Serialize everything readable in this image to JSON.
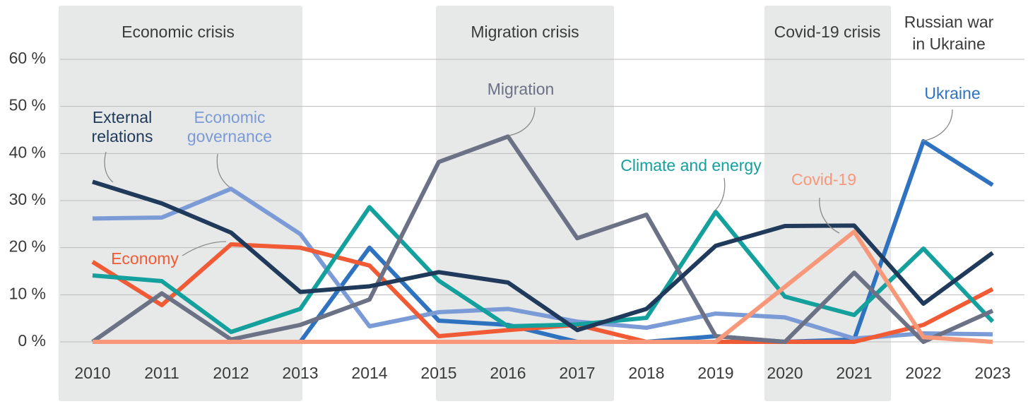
{
  "chart_data": {
    "type": "line",
    "categories": [
      "2010",
      "2011",
      "2012",
      "2013",
      "2014",
      "2015",
      "2016",
      "2017",
      "2018",
      "2019",
      "2020",
      "2021",
      "2022",
      "2023"
    ],
    "periods": [
      "Economic crisis",
      "Migration crisis",
      "Covid-19 crisis",
      "Russian war in Ukraine"
    ],
    "ylim": [
      0,
      60
    ],
    "yticks": [
      {
        "value": 0,
        "label": "0 %"
      },
      {
        "value": 10,
        "label": "10 %"
      },
      {
        "value": 20,
        "label": "20 %"
      },
      {
        "value": 30,
        "label": "30 %"
      },
      {
        "value": 40,
        "label": "40 %"
      },
      {
        "value": 50,
        "label": "50 %"
      },
      {
        "value": 60,
        "label": "60 %"
      }
    ],
    "grid": true,
    "series": [
      {
        "name": "Ukraine",
        "color": "#2f73c0",
        "values": [
          0,
          0,
          0,
          0,
          20,
          4.5,
          3.6,
          0,
          0,
          1.2,
          0,
          0.5,
          42.6,
          33.3
        ]
      },
      {
        "name": "Economic governance",
        "color": "#7b9bd6",
        "values": [
          26.2,
          26.4,
          32.5,
          22.9,
          3.3,
          6.3,
          7,
          4.3,
          3,
          6,
          5.2,
          0.7,
          1.8,
          1.6
        ]
      },
      {
        "name": "Economy",
        "color": "#f05a35",
        "values": [
          17,
          7.8,
          20.7,
          20,
          16.2,
          1.2,
          2.5,
          3.6,
          0,
          0,
          0,
          0,
          3.6,
          11.2
        ]
      },
      {
        "name": "Climate and energy",
        "color": "#14a09c",
        "values": [
          14.1,
          12.9,
          2.1,
          7,
          28.6,
          13,
          3.3,
          3.7,
          5.1,
          27.6,
          9.6,
          5.7,
          19.8,
          4.3
        ]
      },
      {
        "name": "Migration",
        "color": "#6c7285",
        "values": [
          0,
          10.3,
          0.5,
          3.6,
          9,
          38.2,
          43.6,
          22,
          27,
          1.2,
          0,
          14.7,
          0,
          6.6
        ]
      },
      {
        "name": "External relations",
        "color": "#1f3a5a",
        "values": [
          34,
          29.4,
          23.2,
          10.6,
          11.8,
          14.8,
          12.6,
          2.5,
          7,
          20.4,
          24.6,
          24.7,
          8.1,
          18.9
        ]
      },
      {
        "name": "Covid-19",
        "color": "#f7987a",
        "values": [
          0,
          0,
          0,
          0,
          0,
          0,
          0,
          0,
          0,
          0,
          11.7,
          23.4,
          1,
          0
        ]
      }
    ]
  }
}
